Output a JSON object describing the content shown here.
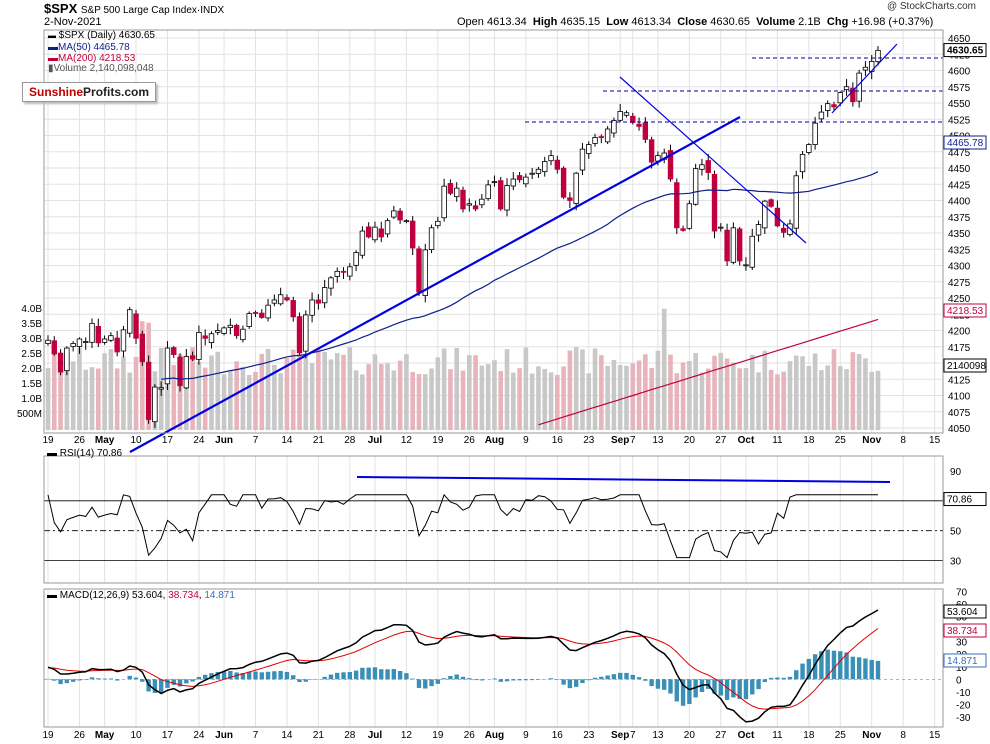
{
  "header": {
    "symbol": "$SPX",
    "name": "S&P 500 Large Cap Index",
    "exchange": "INDX",
    "date": "2-Nov-2021",
    "open_label": "Open",
    "open": "4613.34",
    "high_label": "High",
    "high": "4635.15",
    "low_label": "Low",
    "low": "4613.34",
    "close_label": "Close",
    "close": "4630.65",
    "volume_label": "Volume",
    "volume": "2.1B",
    "chg_label": "Chg",
    "chg": "+16.98 (+0.37%)",
    "copyright": "@ StockCharts.com"
  },
  "legend": {
    "price": "$SPX (Daily) 4630.65",
    "ma50": "MA(50) 4465.78",
    "ma200": "MA(200) 4218.53",
    "volume": "Volume 2,140,098,048"
  },
  "logo": {
    "part1": "Sunshine",
    "part2": "Profits.com"
  },
  "rsi": {
    "label": "RSI(14) 70.86",
    "last": "70.86",
    "levels": [
      "90",
      "70",
      "50",
      "30"
    ]
  },
  "macd": {
    "label_prefix": "MACD(12,26,9)",
    "macd": "53.604",
    "signal": "38.734",
    "hist": "14.871"
  },
  "colors": {
    "up": "#000000",
    "down": "#c0003c",
    "ma50": "#0c1f8c",
    "ma200": "#c0003c",
    "trend": "#0000e0",
    "vol_up": "#c8c8c8",
    "vol_down": "#e8b4bc",
    "macd_hist": "#3a8fb7",
    "rsi_line": "#000000"
  },
  "chart_data": {
    "type": "candlestick",
    "price_axis": {
      "min": 4050,
      "max": 4650,
      "ticks": [
        "4650",
        "4625",
        "4600",
        "4575",
        "4550",
        "4525",
        "4500",
        "4475",
        "4450",
        "4425",
        "4400",
        "4375",
        "4350",
        "4325",
        "4300",
        "4275",
        "4250",
        "4225",
        "4200",
        "4175",
        "4150",
        "4125",
        "4100",
        "4075",
        "4050"
      ]
    },
    "price_marks": {
      "last": "4630.65",
      "ma50": "4465.78",
      "ma200": "4218.53",
      "volume": "2140098"
    },
    "volume_axis": {
      "ticks": [
        "4.0B",
        "3.5B",
        "3.0B",
        "2.5B",
        "2.0B",
        "1.5B",
        "1.0B",
        "500M"
      ]
    },
    "x_labels": [
      {
        "label": "19",
        "idx": 0
      },
      {
        "label": "26",
        "idx": 5
      },
      {
        "label": "May",
        "idx": 9
      },
      {
        "label": "10",
        "idx": 14
      },
      {
        "label": "17",
        "idx": 19
      },
      {
        "label": "24",
        "idx": 24
      },
      {
        "label": "Jun",
        "idx": 28
      },
      {
        "label": "7",
        "idx": 33
      },
      {
        "label": "14",
        "idx": 38
      },
      {
        "label": "21",
        "idx": 43
      },
      {
        "label": "28",
        "idx": 48
      },
      {
        "label": "Jul",
        "idx": 52
      },
      {
        "label": "12",
        "idx": 57
      },
      {
        "label": "19",
        "idx": 62
      },
      {
        "label": "26",
        "idx": 67
      },
      {
        "label": "Aug",
        "idx": 71
      },
      {
        "label": "9",
        "idx": 76
      },
      {
        "label": "16",
        "idx": 81
      },
      {
        "label": "23",
        "idx": 86
      },
      {
        "label": "Sep",
        "idx": 91
      },
      {
        "label": "7",
        "idx": 93
      },
      {
        "label": "13",
        "idx": 97
      },
      {
        "label": "20",
        "idx": 102
      },
      {
        "label": "27",
        "idx": 107
      },
      {
        "label": "Oct",
        "idx": 111
      },
      {
        "label": "11",
        "idx": 116
      },
      {
        "label": "18",
        "idx": 121
      },
      {
        "label": "25",
        "idx": 126
      },
      {
        "label": "Nov",
        "idx": 131
      },
      {
        "label": "8",
        "idx": 136
      },
      {
        "label": "15",
        "idx": 141
      }
    ],
    "closes": [
      4185,
      4164,
      4136,
      4173,
      4180,
      4187,
      4183,
      4211,
      4181,
      4187,
      4192,
      4167,
      4201,
      4232,
      4188,
      4152,
      4063,
      4113,
      4112,
      4173,
      4163,
      4115,
      4160,
      4156,
      4197,
      4188,
      4195,
      4200,
      4204,
      4208,
      4192,
      4202,
      4226,
      4227,
      4220,
      4239,
      4247,
      4255,
      4247,
      4221,
      4166,
      4224,
      4247,
      4242,
      4266,
      4281,
      4291,
      4290,
      4298,
      4320,
      4353,
      4344,
      4359,
      4344,
      4369,
      4384,
      4370,
      4369,
      4327,
      4259,
      4324,
      4358,
      4368,
      4422,
      4411,
      4419,
      4387,
      4395,
      4387,
      4402,
      4424,
      4429,
      4387,
      4423,
      4433,
      4432,
      4436,
      4442,
      4448,
      4460,
      4469,
      4448,
      4405,
      4400,
      4442,
      4479,
      4486,
      4497,
      4497,
      4510,
      4523,
      4537,
      4535,
      4520,
      4514,
      4494,
      4459,
      4469,
      4473,
      4433,
      4358,
      4354,
      4395,
      4449,
      4455,
      4443,
      4353,
      4359,
      4307,
      4358,
      4307,
      4301,
      4345,
      4363,
      4399,
      4391,
      4361,
      4351,
      4364,
      4438,
      4471,
      4486,
      4519,
      4536,
      4549,
      4544,
      4566,
      4575,
      4552,
      4596,
      4605,
      4614,
      4631
    ],
    "volume_ma_note": "",
    "rsi_axis": {
      "ticks": [
        "90",
        "70",
        "50",
        "30"
      ]
    },
    "macd_axis": {
      "ticks": [
        "70",
        "60",
        "50",
        "40",
        "30",
        "20",
        "10",
        "0",
        "-10",
        "-20",
        "-30"
      ]
    }
  }
}
